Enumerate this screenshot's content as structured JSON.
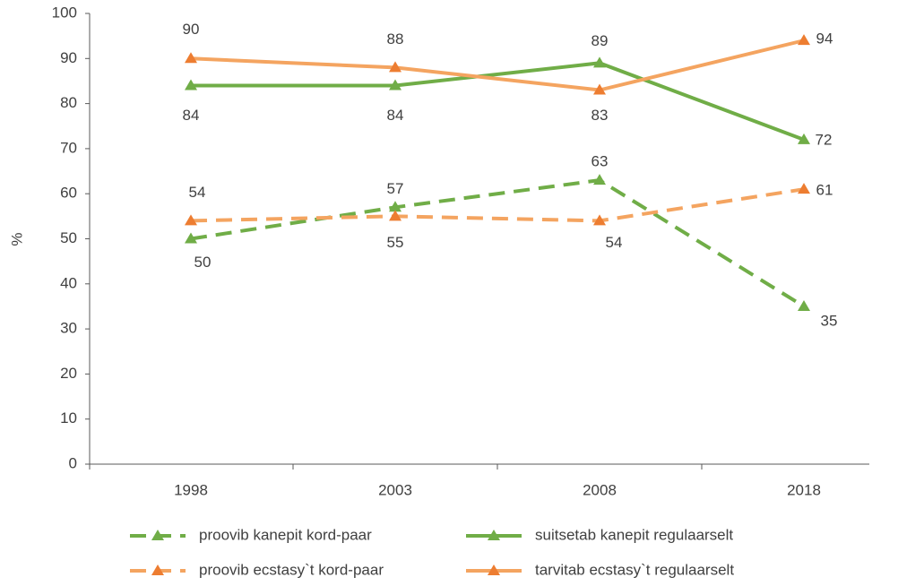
{
  "chart_data": {
    "type": "line",
    "y_label": "%",
    "categories": [
      "1998",
      "2003",
      "2008",
      "2018"
    ],
    "series": [
      {
        "name": "proovib kanepit kord-paar",
        "color": "#70ad47",
        "marker_color": "#70ad47",
        "dashed": true,
        "values": [
          50,
          57,
          63,
          35
        ]
      },
      {
        "name": "suitsetab kanepit regulaarselt",
        "color": "#70ad47",
        "marker_color": "#70ad47",
        "dashed": false,
        "values": [
          84,
          84,
          89,
          72
        ]
      },
      {
        "name": "proovib ecstasy`t kord-paar",
        "color": "#f4a460",
        "marker_color": "#ed7d31",
        "dashed": true,
        "values": [
          54,
          55,
          54,
          61
        ]
      },
      {
        "name": "tarvitab ecstasy`t regulaarselt",
        "color": "#f4a460",
        "marker_color": "#ed7d31",
        "dashed": false,
        "values": [
          90,
          88,
          83,
          94
        ]
      }
    ],
    "ylim": [
      0,
      100
    ],
    "yticks": [
      0,
      10,
      20,
      30,
      40,
      50,
      60,
      70,
      80,
      90,
      100
    ],
    "grid": false,
    "legend": "bottom"
  }
}
